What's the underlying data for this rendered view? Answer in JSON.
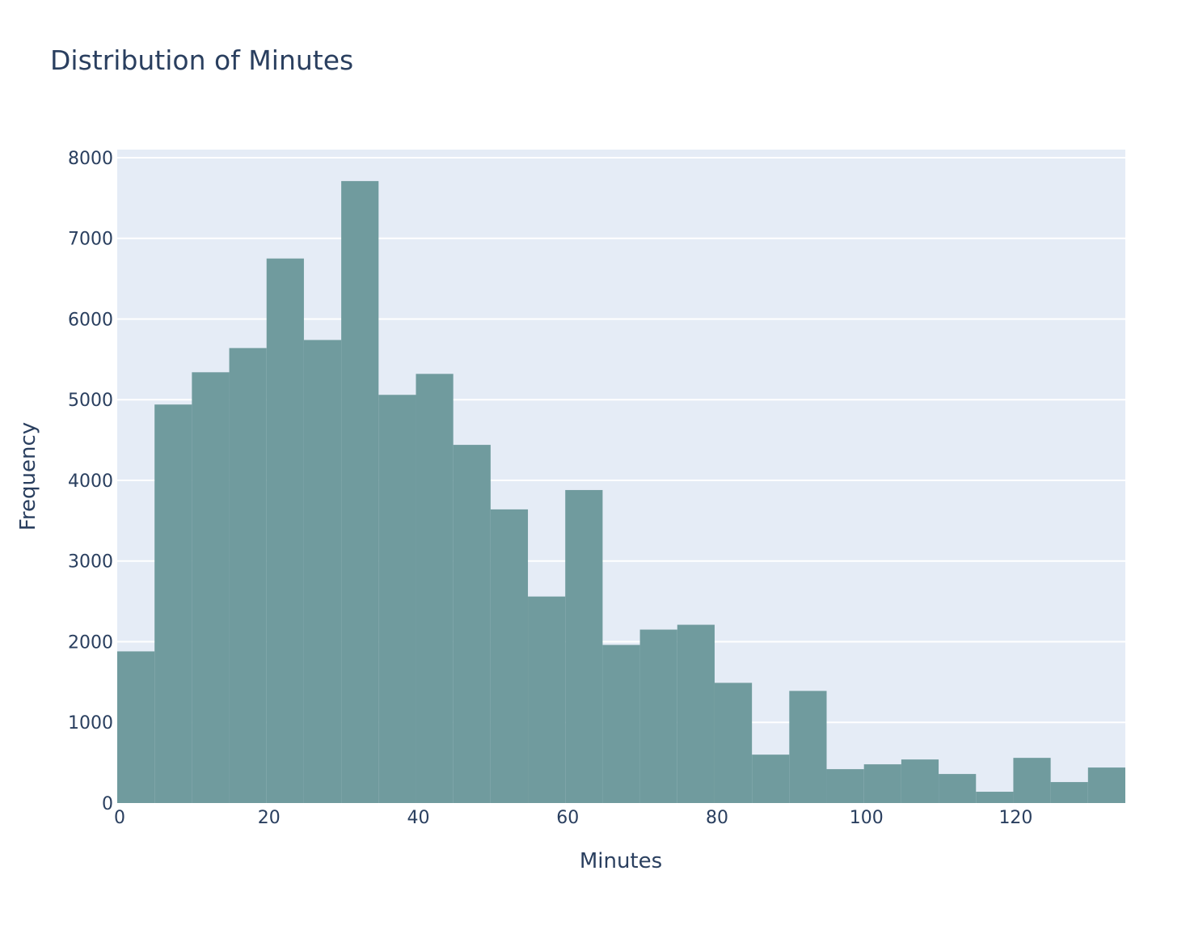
{
  "chart_data": {
    "type": "bar",
    "title": "Distribution of Minutes",
    "xlabel": "Minutes",
    "ylabel": "Frequency",
    "bin_width": 5,
    "bin_starts": [
      0,
      5,
      10,
      15,
      20,
      25,
      30,
      35,
      40,
      45,
      50,
      55,
      60,
      65,
      70,
      75,
      80,
      85,
      90,
      95,
      100,
      105,
      110,
      115,
      120,
      125,
      130
    ],
    "values": [
      1880,
      4940,
      5340,
      5640,
      6750,
      5740,
      7710,
      5060,
      5320,
      4440,
      3640,
      2560,
      3880,
      1960,
      2150,
      2210,
      1490,
      600,
      1390,
      420,
      480,
      540,
      360,
      140,
      560,
      260,
      440
    ],
    "xlim": [
      0,
      135
    ],
    "ylim": [
      0,
      8100
    ],
    "x_ticks": [
      0,
      20,
      40,
      60,
      80,
      100,
      120
    ],
    "y_ticks": [
      0,
      1000,
      2000,
      3000,
      4000,
      5000,
      6000,
      7000,
      8000
    ],
    "grid": true,
    "colors": {
      "bar": "#709b9e",
      "plot_background": "#e5ecf6",
      "grid": "#ffffff",
      "text": "#2a3f5f"
    }
  }
}
